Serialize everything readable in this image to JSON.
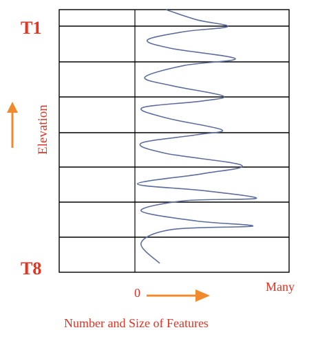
{
  "top_label": "T1",
  "bottom_label": "T8",
  "y_axis_label": "Elevation",
  "x_zero_label": "0",
  "x_max_label": "Many",
  "x_axis_title": "Number and Size  of Features",
  "colors": {
    "label": "#e8301f",
    "arrow": "#f08a2c",
    "curve": "#5d6e9c",
    "grid": "#000000"
  },
  "layer_count": 7,
  "chart_data": {
    "type": "line",
    "xlabel": "Number and Size  of Features",
    "ylabel": "Elevation",
    "note_x_scale": "qualitative 0 to Many",
    "x_range": [
      0,
      1
    ],
    "y_range": [
      "T8",
      "T1"
    ],
    "series": [
      {
        "points": [
          [
            0.2,
            0.0
          ],
          [
            0.05,
            0.6
          ],
          [
            0.3,
            1.0
          ],
          [
            0.95,
            1.1
          ],
          [
            0.5,
            1.25
          ],
          [
            0.05,
            1.55
          ],
          [
            0.4,
            1.85
          ],
          [
            0.98,
            1.92
          ],
          [
            0.55,
            2.15
          ],
          [
            0.02,
            2.35
          ],
          [
            0.55,
            2.65
          ],
          [
            0.86,
            2.9
          ],
          [
            0.25,
            3.25
          ],
          [
            0.05,
            3.55
          ],
          [
            0.5,
            3.8
          ],
          [
            0.7,
            3.95
          ],
          [
            0.25,
            4.3
          ],
          [
            0.06,
            4.6
          ],
          [
            0.55,
            4.8
          ],
          [
            0.71,
            4.95
          ],
          [
            0.3,
            5.25
          ],
          [
            0.08,
            5.5
          ],
          [
            0.4,
            5.85
          ],
          [
            0.81,
            6.05
          ],
          [
            0.3,
            6.35
          ],
          [
            0.1,
            6.6
          ],
          [
            0.4,
            6.85
          ],
          [
            0.75,
            7.0
          ],
          [
            0.5,
            7.2
          ],
          [
            0.25,
            7.5
          ]
        ]
      }
    ]
  }
}
